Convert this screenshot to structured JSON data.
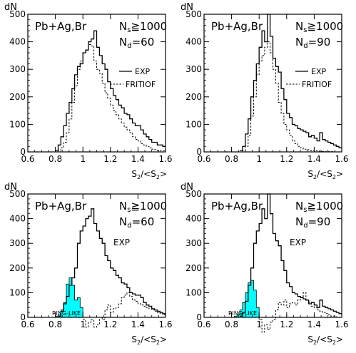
{
  "chart_data": [
    {
      "type": "line",
      "ylabel": "dN",
      "xlabel": "S2/<S2>",
      "ylim": [
        0,
        500
      ],
      "xlim": [
        0.6,
        1.6
      ],
      "xticks": [
        "0.6",
        "0.8",
        "1",
        "1.2",
        "1.4",
        "1.6"
      ],
      "yticks": [
        "0",
        "100",
        "200",
        "300",
        "400",
        "500"
      ],
      "label_system": "Pb+Ag,Br",
      "label_ns": "Nₛ≧1000",
      "label_nd": "Nₐ=60",
      "legend": [
        "EXP",
        "FRITIOF"
      ],
      "series": [
        {
          "name": "EXP",
          "style": "solid",
          "x": [
            0.8,
            0.82,
            0.84,
            0.86,
            0.88,
            0.9,
            0.92,
            0.94,
            0.96,
            0.98,
            1.0,
            1.02,
            1.04,
            1.06,
            1.08,
            1.1,
            1.12,
            1.14,
            1.16,
            1.18,
            1.2,
            1.22,
            1.24,
            1.26,
            1.28,
            1.3,
            1.32,
            1.34,
            1.36,
            1.38,
            1.4,
            1.42,
            1.44,
            1.46,
            1.48,
            1.5,
            1.52,
            1.54,
            1.56,
            1.58
          ],
          "y": [
            5,
            25,
            55,
            95,
            140,
            180,
            230,
            280,
            310,
            320,
            360,
            370,
            400,
            410,
            440,
            380,
            350,
            320,
            300,
            255,
            230,
            205,
            190,
            170,
            160,
            140,
            135,
            120,
            105,
            95,
            95,
            80,
            65,
            55,
            45,
            35,
            35,
            25,
            25,
            20
          ]
        },
        {
          "name": "FRITIOF",
          "style": "dashed",
          "x": [
            0.8,
            0.82,
            0.84,
            0.86,
            0.88,
            0.9,
            0.92,
            0.94,
            0.96,
            0.98,
            1.0,
            1.02,
            1.04,
            1.06,
            1.08,
            1.1,
            1.12,
            1.14,
            1.16,
            1.18,
            1.2,
            1.22,
            1.24,
            1.26,
            1.28,
            1.3,
            1.32,
            1.34,
            1.36,
            1.38,
            1.4,
            1.42,
            1.44,
            1.46,
            1.48,
            1.5,
            1.52,
            1.54,
            1.56,
            1.58
          ],
          "y": [
            0,
            5,
            15,
            35,
            70,
            120,
            180,
            240,
            300,
            330,
            360,
            370,
            390,
            385,
            330,
            300,
            285,
            250,
            215,
            195,
            170,
            150,
            135,
            120,
            105,
            90,
            80,
            70,
            55,
            45,
            40,
            30,
            25,
            20,
            15,
            10,
            8,
            5,
            5,
            5
          ]
        }
      ]
    },
    {
      "type": "line",
      "ylabel": "dN",
      "xlabel": "S2/<S2>",
      "ylim": [
        0,
        500
      ],
      "xlim": [
        0.6,
        1.6
      ],
      "xticks": [
        "0.6",
        "0.8",
        "1",
        "1.2",
        "1.4",
        "1.6"
      ],
      "yticks": [
        "0",
        "100",
        "200",
        "300",
        "400",
        "500"
      ],
      "label_system": "Pb+Ag,Br",
      "label_ns": "Nₛ≧1000",
      "label_nd": "Nₐ=90",
      "legend": [
        "EXP",
        "FRITIOF"
      ],
      "series": [
        {
          "name": "EXP",
          "style": "solid",
          "x": [
            0.86,
            0.88,
            0.9,
            0.92,
            0.94,
            0.96,
            0.98,
            1.0,
            1.02,
            1.04,
            1.06,
            1.08,
            1.1,
            1.12,
            1.14,
            1.16,
            1.18,
            1.2,
            1.22,
            1.24,
            1.26,
            1.28,
            1.3,
            1.32,
            1.34,
            1.36,
            1.38,
            1.4,
            1.42,
            1.44,
            1.46,
            1.48,
            1.5,
            1.52,
            1.54,
            1.56,
            1.58
          ],
          "y": [
            5,
            20,
            65,
            120,
            200,
            260,
            320,
            380,
            440,
            400,
            500,
            420,
            340,
            310,
            290,
            230,
            190,
            140,
            125,
            100,
            95,
            85,
            80,
            75,
            70,
            55,
            60,
            50,
            40,
            70,
            45,
            40,
            35,
            30,
            25,
            20,
            15
          ]
        },
        {
          "name": "FRITIOF",
          "style": "dashed",
          "x": [
            0.86,
            0.88,
            0.9,
            0.92,
            0.94,
            0.96,
            0.98,
            1.0,
            1.02,
            1.04,
            1.06,
            1.08,
            1.1,
            1.12,
            1.14,
            1.16,
            1.18,
            1.2,
            1.22,
            1.24,
            1.26,
            1.28,
            1.3,
            1.32,
            1.34,
            1.36,
            1.38,
            1.4,
            1.42,
            1.44,
            1.46,
            1.48,
            1.5,
            1.52,
            1.54,
            1.56,
            1.58
          ],
          "y": [
            0,
            5,
            20,
            60,
            130,
            200,
            280,
            330,
            350,
            380,
            400,
            360,
            300,
            250,
            180,
            140,
            100,
            80,
            60,
            40,
            30,
            20,
            15,
            10,
            8,
            6,
            5,
            4,
            3,
            2,
            2,
            1,
            1,
            1,
            0,
            0,
            0
          ]
        }
      ]
    },
    {
      "type": "line",
      "ylabel": "dN",
      "xlabel": "S2/<S2>",
      "ylim": [
        0,
        500
      ],
      "xlim": [
        0.6,
        1.6
      ],
      "xticks": [
        "0.6",
        "0.8",
        "1",
        "1.2",
        "1.4",
        "1.6"
      ],
      "yticks": [
        "0",
        "100",
        "200",
        "300",
        "400",
        "500"
      ],
      "label_system": "Pb+Ag,Br",
      "label_ns": "Nₛ≧1000",
      "label_nd": "Nₐ=60",
      "annotation_exp": "EXP",
      "annotation_ring": "RING-LIKE",
      "series": [
        {
          "name": "EXP",
          "style": "solid",
          "x": [
            0.82,
            0.84,
            0.86,
            0.88,
            0.9,
            0.92,
            0.94,
            0.96,
            0.98,
            1.0,
            1.02,
            1.04,
            1.06,
            1.08,
            1.1,
            1.12,
            1.14,
            1.16,
            1.18,
            1.2,
            1.22,
            1.24,
            1.26,
            1.28,
            1.3,
            1.32,
            1.34,
            1.36,
            1.38,
            1.4,
            1.42,
            1.44,
            1.46,
            1.48,
            1.5,
            1.52,
            1.54,
            1.56,
            1.58
          ],
          "y": [
            5,
            25,
            55,
            85,
            130,
            160,
            200,
            300,
            350,
            370,
            400,
            410,
            440,
            380,
            350,
            320,
            300,
            250,
            230,
            200,
            190,
            170,
            160,
            140,
            135,
            120,
            100,
            95,
            90,
            90,
            80,
            60,
            50,
            45,
            35,
            30,
            25,
            20,
            15
          ]
        },
        {
          "name": "",
          "style": "dashed",
          "x": [
            1.0,
            1.02,
            1.04,
            1.06,
            1.08,
            1.1,
            1.12,
            1.14,
            1.16,
            1.18,
            1.2,
            1.22,
            1.24,
            1.26,
            1.28,
            1.3,
            1.32,
            1.34,
            1.36,
            1.38,
            1.4,
            1.42,
            1.44,
            1.46,
            1.48,
            1.5,
            1.52,
            1.54,
            1.56,
            1.58
          ],
          "y": [
            -10,
            -40,
            -20,
            -10,
            -40,
            -30,
            0,
            -10,
            30,
            50,
            20,
            35,
            40,
            55,
            80,
            90,
            100,
            85,
            70,
            65,
            55,
            50,
            45,
            40,
            35,
            30,
            25,
            20,
            15,
            10
          ]
        },
        {
          "name": "",
          "style": "filled",
          "x": [
            0.8,
            0.82,
            0.84,
            0.86,
            0.88,
            0.9,
            0.92,
            0.94,
            0.96,
            0.98
          ],
          "y": [
            5,
            10,
            30,
            60,
            135,
            160,
            130,
            70,
            80,
            40
          ]
        }
      ]
    },
    {
      "type": "line",
      "ylabel": "dN",
      "xlabel": "S2/<S2>",
      "ylim": [
        0,
        500
      ],
      "xlim": [
        0.6,
        1.6
      ],
      "xticks": [
        "0.6",
        "0.8",
        "1",
        "1.2",
        "1.4",
        "1.6"
      ],
      "yticks": [
        "0",
        "100",
        "200",
        "300",
        "400",
        "500"
      ],
      "label_system": "Pb+Ag,Br",
      "label_ns": "Nₛ≧1000",
      "label_nd": "Nₐ=90",
      "annotation_exp": "EXP",
      "annotation_ring": "RING-LIKE",
      "series": [
        {
          "name": "EXP",
          "style": "solid",
          "x": [
            0.86,
            0.88,
            0.9,
            0.92,
            0.94,
            0.96,
            0.98,
            1.0,
            1.02,
            1.04,
            1.06,
            1.08,
            1.1,
            1.12,
            1.14,
            1.16,
            1.18,
            1.2,
            1.22,
            1.24,
            1.26,
            1.28,
            1.3,
            1.32,
            1.34,
            1.36,
            1.38,
            1.4,
            1.42,
            1.44,
            1.46,
            1.48,
            1.5,
            1.52,
            1.54,
            1.56,
            1.58
          ],
          "y": [
            5,
            20,
            65,
            130,
            200,
            300,
            350,
            380,
            440,
            400,
            500,
            420,
            340,
            310,
            290,
            230,
            190,
            140,
            125,
            100,
            95,
            85,
            80,
            75,
            70,
            55,
            60,
            50,
            40,
            70,
            45,
            40,
            35,
            30,
            25,
            20,
            15
          ]
        },
        {
          "name": "",
          "style": "dashed",
          "x": [
            0.98,
            1.0,
            1.02,
            1.04,
            1.06,
            1.08,
            1.1,
            1.12,
            1.14,
            1.16,
            1.18,
            1.2,
            1.22,
            1.24,
            1.26,
            1.28,
            1.3,
            1.32,
            1.34,
            1.36,
            1.38,
            1.4,
            1.42,
            1.44,
            1.46,
            1.48,
            1.5,
            1.52,
            1.54,
            1.56,
            1.58
          ],
          "y": [
            0,
            -10,
            -60,
            -30,
            -50,
            -20,
            -10,
            30,
            60,
            50,
            70,
            40,
            55,
            60,
            50,
            70,
            80,
            100,
            70,
            60,
            45,
            40,
            30,
            25,
            20,
            15,
            10,
            5,
            5,
            0,
            0
          ]
        },
        {
          "name": "",
          "style": "filled",
          "x": [
            0.82,
            0.84,
            0.86,
            0.88,
            0.9,
            0.92,
            0.94,
            0.96,
            0.98
          ],
          "y": [
            5,
            10,
            30,
            60,
            100,
            140,
            150,
            110,
            40
          ]
        }
      ]
    }
  ],
  "colors": {
    "axis": "#000000",
    "fill": "#00ffff"
  }
}
